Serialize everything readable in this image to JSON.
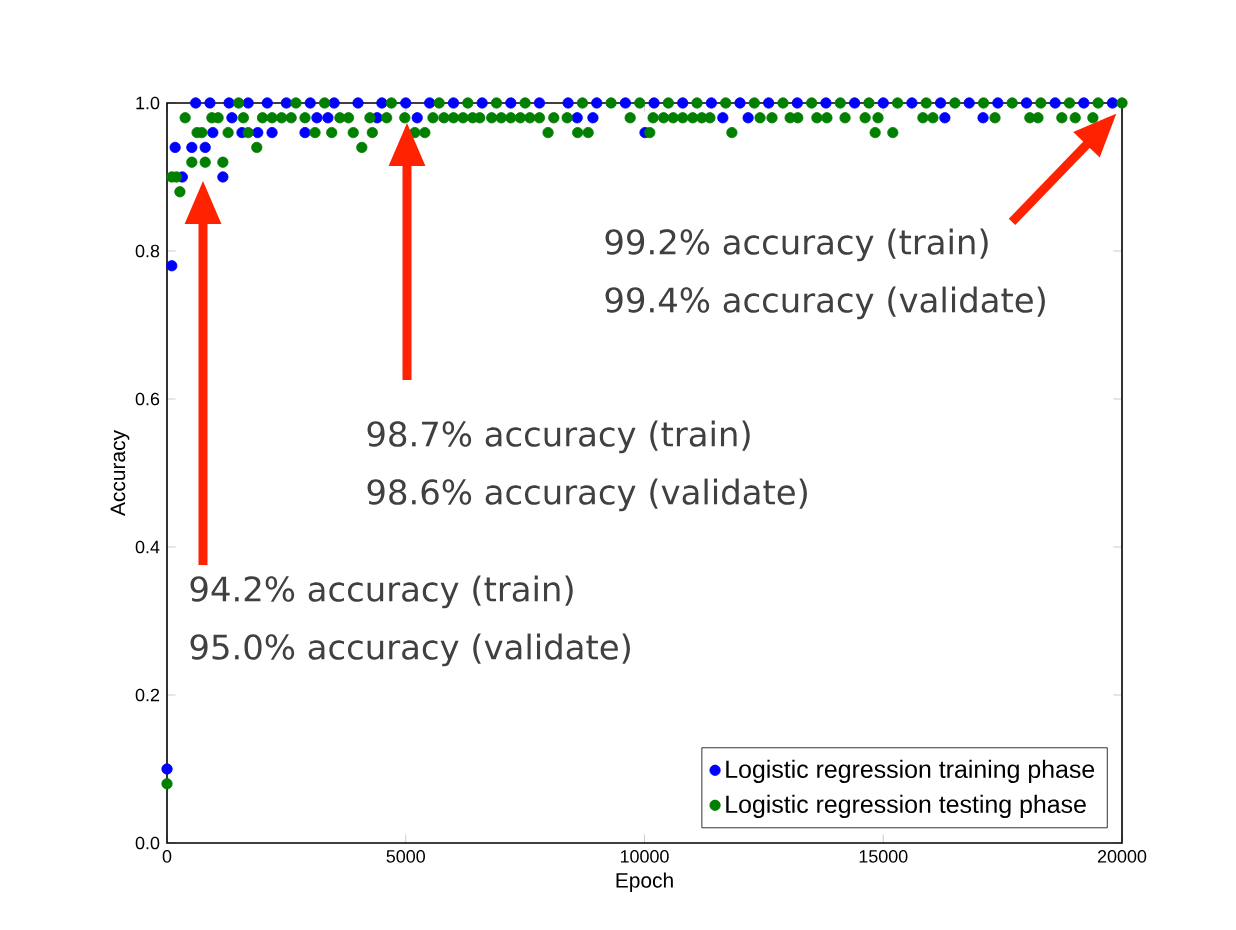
{
  "chart_data": {
    "type": "scatter",
    "xlabel": "Epoch",
    "ylabel": "Accuracy",
    "xlim": [
      0,
      20000
    ],
    "ylim": [
      0,
      1
    ],
    "xticks": [
      0,
      5000,
      10000,
      15000,
      20000
    ],
    "yticks": [
      {
        "value": 0,
        "label": "0.0"
      },
      {
        "value": 0.2,
        "label": "0.2"
      },
      {
        "value": 0.4,
        "label": "0.4"
      },
      {
        "value": 0.6,
        "label": "0.6"
      },
      {
        "value": 0.8,
        "label": "0.8"
      },
      {
        "value": 1,
        "label": "1.0"
      }
    ],
    "marker": "circle",
    "legend": "bottom right",
    "grid": false,
    "series": [
      {
        "name": "Logistic regression training phase",
        "color": "#0000ff",
        "x": [
          0,
          100,
          170,
          320,
          520,
          600,
          800,
          900,
          960,
          1170,
          1300,
          1360,
          1570,
          1700,
          1900,
          2100,
          2200,
          2500,
          2890,
          3000,
          3140,
          3370,
          3500,
          4000,
          4400,
          4500,
          5000,
          5240,
          5500,
          6000,
          6600,
          7200,
          7800,
          8400,
          8590,
          8920,
          9000,
          9600,
          10010,
          10200,
          10800,
          11400,
          11640,
          12000,
          12170,
          12600,
          13200,
          13800,
          14400,
          15000,
          15600,
          16200,
          16290,
          16800,
          17090,
          17400,
          18000,
          18600,
          19200,
          19800
        ],
        "values": [
          0.1,
          0.78,
          0.94,
          0.9,
          0.94,
          1.0,
          0.94,
          1.0,
          0.96,
          0.9,
          1.0,
          0.98,
          0.96,
          1.0,
          0.96,
          1.0,
          0.96,
          1.0,
          0.96,
          1.0,
          0.98,
          0.98,
          1.0,
          1.0,
          0.98,
          1.0,
          1.0,
          0.98,
          1.0,
          1.0,
          1.0,
          1.0,
          1.0,
          1.0,
          0.98,
          0.98,
          1.0,
          1.0,
          0.96,
          1.0,
          1.0,
          1.0,
          0.98,
          1.0,
          0.98,
          1.0,
          1.0,
          1.0,
          1.0,
          1.0,
          1.0,
          1.0,
          0.98,
          1.0,
          0.98,
          1.0,
          1.0,
          1.0,
          1.0,
          1.0
        ]
      },
      {
        "name": "Logistic regression testing phase",
        "color": "#007f00",
        "x": [
          0,
          100,
          200,
          270,
          380,
          520,
          630,
          730,
          800,
          940,
          1070,
          1170,
          1280,
          1500,
          1600,
          1700,
          1880,
          2000,
          2200,
          2400,
          2600,
          2700,
          2890,
          3100,
          3300,
          3450,
          3620,
          3800,
          3900,
          4080,
          4250,
          4300,
          4600,
          4700,
          4980,
          5190,
          5400,
          5570,
          5700,
          5800,
          6000,
          6200,
          6300,
          6400,
          6550,
          6800,
          6900,
          7000,
          7200,
          7400,
          7500,
          7600,
          7800,
          7980,
          8100,
          8380,
          8600,
          8700,
          8820,
          9300,
          9700,
          9900,
          10110,
          10180,
          10400,
          10500,
          10600,
          10800,
          11010,
          11100,
          11200,
          11370,
          11700,
          11830,
          12300,
          12420,
          12670,
          12900,
          13050,
          13210,
          13500,
          13610,
          13820,
          14100,
          14200,
          14620,
          14700,
          14830,
          14890,
          15200,
          15300,
          15830,
          15900,
          16040,
          16500,
          17100,
          17340,
          17700,
          18070,
          18240,
          18300,
          18740,
          18900,
          19020,
          19390,
          19500,
          20000
        ],
        "values": [
          0.08,
          0.9,
          0.9,
          0.88,
          0.98,
          0.92,
          0.96,
          0.96,
          0.92,
          0.98,
          0.98,
          0.92,
          0.96,
          1.0,
          0.98,
          0.96,
          0.94,
          0.98,
          0.98,
          0.98,
          0.98,
          1.0,
          0.98,
          0.96,
          1.0,
          0.96,
          0.98,
          0.98,
          0.96,
          0.94,
          0.98,
          0.96,
          0.98,
          1.0,
          0.98,
          0.96,
          0.96,
          0.98,
          1.0,
          0.98,
          0.98,
          0.98,
          1.0,
          0.98,
          0.98,
          0.98,
          1.0,
          0.98,
          0.98,
          0.98,
          1.0,
          0.98,
          0.98,
          0.96,
          0.98,
          0.98,
          0.96,
          1.0,
          0.96,
          1.0,
          0.98,
          1.0,
          0.96,
          0.98,
          0.98,
          1.0,
          0.98,
          0.98,
          0.98,
          1.0,
          0.98,
          0.98,
          1.0,
          0.96,
          1.0,
          0.98,
          0.98,
          1.0,
          0.98,
          0.98,
          1.0,
          0.98,
          0.98,
          1.0,
          0.98,
          0.98,
          1.0,
          0.96,
          0.98,
          0.96,
          1.0,
          0.98,
          1.0,
          0.98,
          1.0,
          1.0,
          0.98,
          1.0,
          0.98,
          0.98,
          1.0,
          0.98,
          1.0,
          0.98,
          0.98,
          1.0,
          1.0
        ]
      }
    ],
    "annotations": [
      "94.2% accuracy (train)",
      "95.0% accuracy (validate)",
      "98.7% accuracy (train)",
      "98.6% accuracy (validate)",
      "99.2% accuracy (train)",
      "99.4% accuracy (validate)"
    ]
  }
}
